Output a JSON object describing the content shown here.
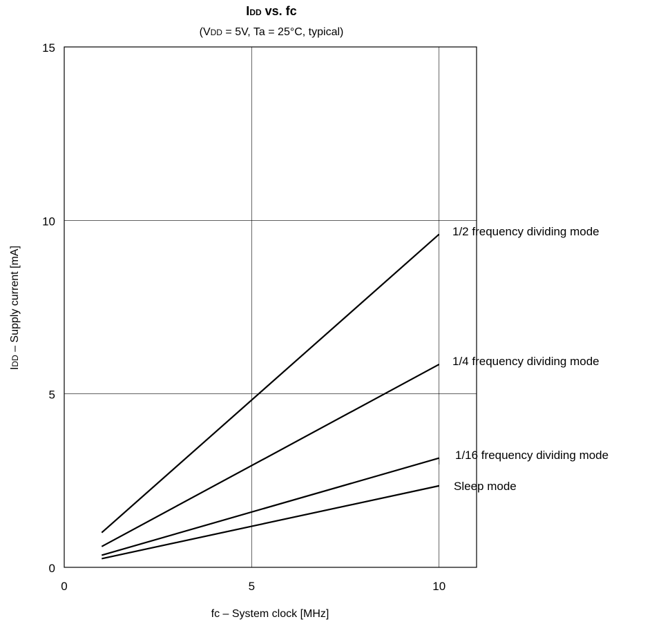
{
  "chart_data": {
    "type": "line",
    "title": {
      "prefix": "I",
      "small": "DD",
      "suffix": " vs. fc"
    },
    "subtitle": {
      "prefix": "(V",
      "small": "DD",
      "suffix": " = 5V, Ta = 25°C, typical)"
    },
    "xlabel": "fc – System clock [MHz]",
    "ylabel": {
      "prefix": "I",
      "small": "DD",
      "suffix": " – Supply current [mA]"
    },
    "xlim": [
      0,
      11
    ],
    "ylim": [
      0,
      15
    ],
    "xticks": [
      0,
      5,
      10
    ],
    "yticks": [
      0,
      5,
      10,
      15
    ],
    "grid": true,
    "series": [
      {
        "name": "1/2 frequency dividing mode",
        "x": [
          1,
          10
        ],
        "y": [
          1.0,
          9.6
        ]
      },
      {
        "name": "1/4 frequency dividing mode",
        "x": [
          1,
          10
        ],
        "y": [
          0.6,
          5.85
        ]
      },
      {
        "name": "1/16 frequency dividing mode",
        "x": [
          1,
          10
        ],
        "y": [
          0.35,
          3.15
        ]
      },
      {
        "name": "Sleep mode",
        "x": [
          1,
          10
        ],
        "y": [
          0.25,
          2.35
        ]
      }
    ],
    "line_color": "#000000",
    "grid_color": "#000000"
  }
}
